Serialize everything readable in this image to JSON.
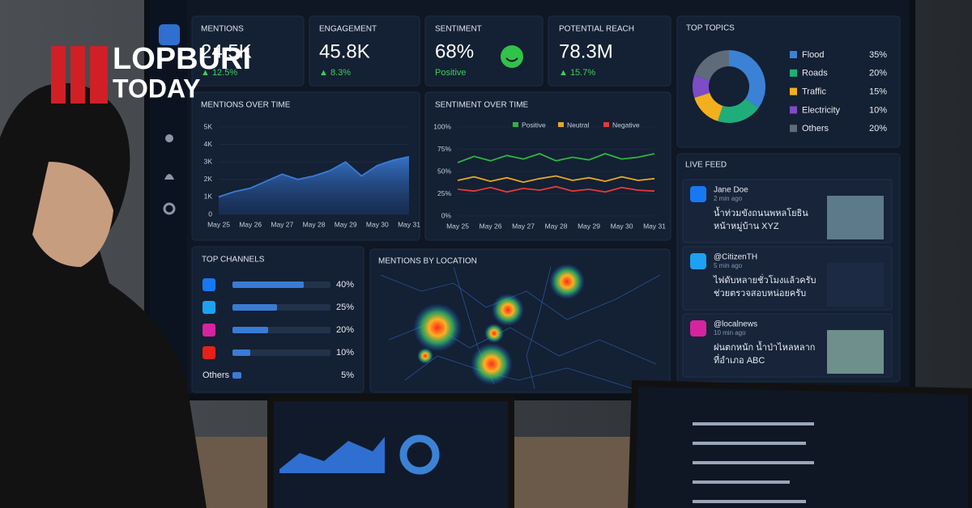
{
  "logo": {
    "line1": "LOPBURI",
    "line2": "TODAY"
  },
  "kpis": [
    {
      "label": "MENTIONS",
      "value": "24.5K",
      "change": "▲ 12.5%"
    },
    {
      "label": "ENGAGEMENT",
      "value": "45.8K",
      "change": "▲ 8.3%"
    },
    {
      "label": "SENTIMENT",
      "value": "68%",
      "change": "Positive"
    },
    {
      "label": "POTENTIAL REACH",
      "value": "78.3M",
      "change": "▲ 15.7%"
    }
  ],
  "top_topics": {
    "type": "pie",
    "title": "TOP TOPICS",
    "categories": [
      "Flood",
      "Roads",
      "Traffic",
      "Electricity",
      "Others"
    ],
    "values": [
      35,
      20,
      15,
      10,
      20
    ],
    "value_labels": [
      "35%",
      "20%",
      "15%",
      "10%",
      "20%"
    ],
    "colors": [
      "#3b82d6",
      "#1fae7a",
      "#f2b01e",
      "#7d4cc6",
      "#5f6b7a"
    ]
  },
  "mentions_over_time": {
    "type": "area",
    "title": "MENTIONS OVER TIME",
    "categories": [
      "May 25",
      null,
      "May 26",
      null,
      "May 27",
      null,
      "May 28",
      null,
      "May 29",
      null,
      "May 30",
      null,
      "May 31"
    ],
    "values": [
      1000,
      1300,
      1500,
      1900,
      2300,
      2000,
      2200,
      2500,
      3000,
      2200,
      2800,
      3100,
      3300
    ],
    "color": "#3a7bd5",
    "ylim": [
      0,
      5000
    ],
    "yticks": [
      0,
      {
        "value": 1000,
        "label": "1K"
      },
      {
        "value": 2000,
        "label": "2K"
      },
      {
        "value": 3000,
        "label": "3K"
      },
      {
        "value": 4000,
        "label": "4K"
      },
      {
        "value": 5000,
        "label": "5K"
      }
    ]
  },
  "sentiment_over_time": {
    "type": "line",
    "title": "SENTIMENT OVER TIME",
    "categories": [
      "May 25",
      null,
      "May 26",
      null,
      "May 27",
      null,
      "May 28",
      null,
      "May 29",
      null,
      "May 30",
      null,
      "May 31"
    ],
    "series": [
      {
        "name": "Positive",
        "color": "#2fb344",
        "values": [
          60,
          67,
          62,
          68,
          64,
          70,
          62,
          66,
          63,
          70,
          64,
          66,
          70
        ]
      },
      {
        "name": "Neutral",
        "color": "#e5a823",
        "values": [
          40,
          44,
          39,
          43,
          38,
          42,
          45,
          40,
          43,
          39,
          44,
          40,
          42
        ]
      },
      {
        "name": "Negative",
        "color": "#e03b3b",
        "values": [
          30,
          28,
          32,
          27,
          31,
          29,
          33,
          28,
          30,
          27,
          32,
          29,
          28
        ]
      }
    ],
    "ylim": [
      0,
      100
    ],
    "yticks": [
      {
        "value": 0,
        "label": "0%"
      },
      {
        "value": 25,
        "label": "25%"
      },
      {
        "value": 50,
        "label": "50%"
      },
      {
        "value": 75,
        "label": "75%"
      },
      {
        "value": 100,
        "label": "100%"
      }
    ]
  },
  "top_channels": {
    "type": "bar",
    "title": "TOP CHANNELS",
    "categories": [
      null,
      null,
      null,
      null,
      "Others"
    ],
    "values": [
      40,
      25,
      20,
      10,
      5
    ],
    "value_labels": [
      "40%",
      "25%",
      "20%",
      "10%",
      "5%"
    ],
    "color": "#3a7bd5"
  },
  "location": {
    "title": "MENTIONS BY LOCATION"
  },
  "live_feed": {
    "title": "LIVE FEED",
    "posts": [
      {
        "name": "Jane Doe",
        "time": "2 min ago",
        "lines": [
          "น้ำท่วมขังถนนพหลโยธิน",
          "หน้าหมู่บ้าน XYZ"
        ]
      },
      {
        "name": "@CitizenTH",
        "time": "5 min ago",
        "lines": [
          "ไฟดับหลายชั่วโมงแล้วครับ",
          "ช่วยตรวจสอบหน่อยครับ"
        ]
      },
      {
        "name": "@localnews",
        "time": "10 min ago",
        "lines": [
          "ฝนตกหนัก น้ำป่าไหลหลาก",
          "ที่อำเภอ ABC"
        ]
      }
    ]
  }
}
